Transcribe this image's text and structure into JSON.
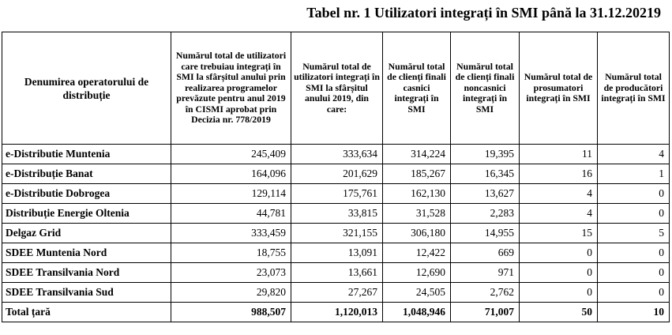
{
  "title": "Tabel nr. 1 Utilizatori integrați în SMI până la 31.12.20219",
  "table": {
    "headers": [
      "Denumirea operatorului de distribuție",
      "Numărul total de utilizatori care trebuiau integrați în SMI la sfârșitul anului prin realizarea programelor prevăzute pentru anul 2019 în CISMI aprobat prin Decizia nr. 778/2019",
      "Numărul total de utilizatori integrați în SMI la sfârșitul anului 2019, din care:",
      "Numărul total de clienți finali casnici integrați în SMI",
      "Numărul total de clienți finali noncasnici integrați în SMI",
      "Numărul total de prosumatori integrați în SMI",
      "Numărul total de producători integrați în SMI"
    ],
    "rows": [
      [
        "e-Distributie Muntenia",
        "245,409",
        "333,634",
        "314,224",
        "19,395",
        "11",
        "4"
      ],
      [
        "e-Distribuție Banat",
        "164,096",
        "201,629",
        "185,267",
        "16,345",
        "16",
        "1"
      ],
      [
        "e-Distributie Dobrogea",
        "129,114",
        "175,761",
        "162,130",
        "13,627",
        "4",
        "0"
      ],
      [
        "Distribuție Energie Oltenia",
        "44,781",
        "33,815",
        "31,528",
        "2,283",
        "4",
        "0"
      ],
      [
        "Delgaz Grid",
        "333,459",
        "321,155",
        "306,180",
        "14,955",
        "15",
        "5"
      ],
      [
        "SDEE Muntenia Nord",
        "18,755",
        "13,091",
        "12,422",
        "669",
        "0",
        "0"
      ],
      [
        "SDEE Transilvania Nord",
        "23,073",
        "13,661",
        "12,690",
        "971",
        "0",
        "0"
      ],
      [
        "SDEE Transilvania Sud",
        "29,820",
        "27,267",
        "24,505",
        "2,762",
        "0",
        "0"
      ]
    ],
    "total": [
      "Total țară",
      "988,507",
      "1,120,013",
      "1,048,946",
      "71,007",
      "50",
      "10"
    ]
  }
}
